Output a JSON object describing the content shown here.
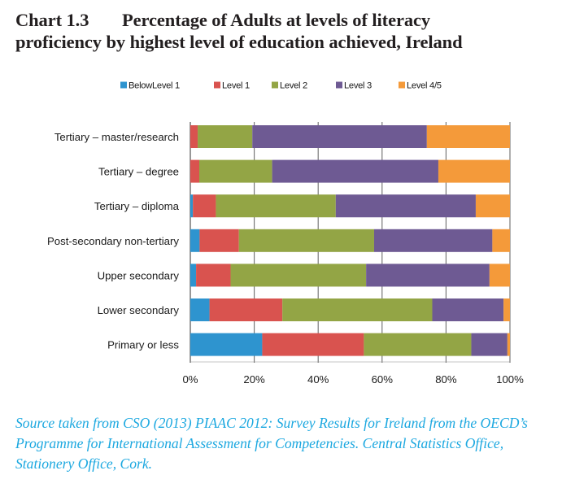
{
  "title": {
    "chart_number": "Chart 1.3",
    "text_line1": "Percentage of Adults at levels of literacy",
    "text_line2": "proficiency by highest level of education achieved, Ireland"
  },
  "source": "Source taken from CSO (2013) PIAAC 2012: Survey Results for Ireland from the OECD’s Programme for International Assessment for Competencies. Central Statistics Office, Stationery Office, Cork.",
  "chart_data": {
    "type": "bar",
    "orientation": "horizontal",
    "stacked": "100%",
    "title": "Percentage of Adults at levels of literacy proficiency by highest level of education achieved, Ireland",
    "xlabel": "",
    "ylabel": "",
    "xlim": [
      0,
      100
    ],
    "x_ticks": [
      "0%",
      "20%",
      "40%",
      "60%",
      "80%",
      "100%"
    ],
    "grid": "vertical gridlines",
    "legend_position": "top",
    "categories": [
      "Tertiary – master/research",
      "Tertiary – degree",
      "Tertiary – diploma",
      "Post-secondary non-tertiary",
      "Upper secondary",
      "Lower secondary",
      "Primary or less"
    ],
    "series": [
      {
        "name": "BelowLevel 1",
        "color": "#2e94cf",
        "values": [
          0.0,
          0.0,
          0.8,
          2.9,
          1.8,
          6.0,
          22.5
        ]
      },
      {
        "name": "Level 1",
        "color": "#d9534f",
        "values": [
          2.3,
          2.8,
          7.2,
          12.3,
          10.8,
          22.8,
          31.8
        ]
      },
      {
        "name": "Level 2",
        "color": "#93a545",
        "values": [
          17.1,
          22.8,
          37.5,
          42.3,
          42.4,
          46.9,
          33.6
        ]
      },
      {
        "name": "Level 3",
        "color": "#6e5a93",
        "values": [
          54.6,
          52.0,
          43.8,
          37.0,
          38.6,
          22.3,
          11.3
        ]
      },
      {
        "name": "Level 4/5",
        "color": "#f49a3a",
        "values": [
          26.0,
          22.4,
          10.7,
          5.5,
          6.4,
          2.0,
          0.8
        ]
      }
    ]
  }
}
